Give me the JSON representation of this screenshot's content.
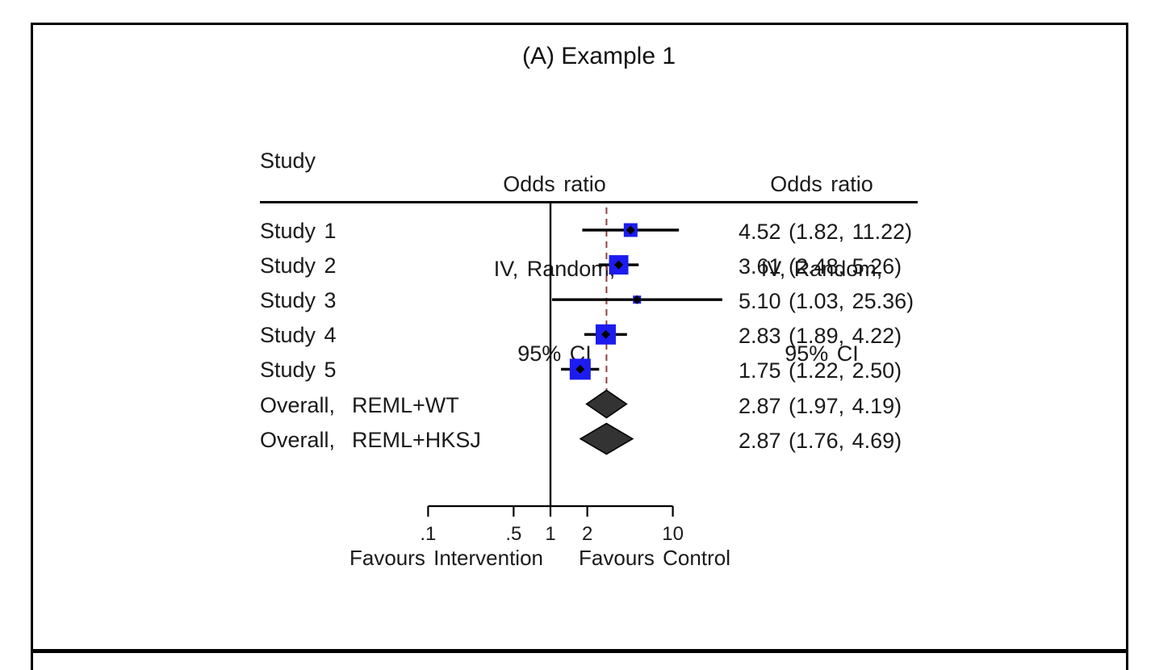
{
  "panel_title": "(A) Example 1",
  "chart_data": {
    "type": "forest",
    "title": "(A) Example 1",
    "x_scale": "log10",
    "study_column_header": "Study",
    "plot_column_header": [
      "Odds ratio",
      "IV, Random,",
      "95% CI"
    ],
    "value_column_header": [
      "Odds ratio",
      "IV, Random,",
      "95% CI"
    ],
    "reference_value": 1,
    "overall_dashed_value": 2.87,
    "rows": [
      {
        "type": "study",
        "label": "Study 1",
        "or": 4.52,
        "ci_low": 1.82,
        "ci_high": 11.22,
        "display": "4.52 (1.82, 11.22)",
        "marker_size": 17
      },
      {
        "type": "study",
        "label": "Study 2",
        "or": 3.61,
        "ci_low": 2.48,
        "ci_high": 5.26,
        "display": "3.61 (2.48, 5.26)",
        "marker_size": 24
      },
      {
        "type": "study",
        "label": "Study 3",
        "or": 5.1,
        "ci_low": 1.03,
        "ci_high": 25.36,
        "display": "5.10 (1.03, 25.36)",
        "marker_size": 10
      },
      {
        "type": "study",
        "label": "Study 4",
        "or": 2.83,
        "ci_low": 1.89,
        "ci_high": 4.22,
        "display": "2.83 (1.89, 4.22)",
        "marker_size": 25
      },
      {
        "type": "study",
        "label": "Study 5",
        "or": 1.75,
        "ci_low": 1.22,
        "ci_high": 2.5,
        "display": "1.75 (1.22, 2.50)",
        "marker_size": 26
      },
      {
        "type": "overall",
        "label": "Overall,  REML+WT",
        "or": 2.87,
        "ci_low": 1.97,
        "ci_high": 4.19,
        "display": "2.87 (1.97, 4.19)"
      },
      {
        "type": "overall",
        "label": "Overall,  REML+HKSJ",
        "or": 2.87,
        "ci_low": 1.76,
        "ci_high": 4.69,
        "display": "2.87 (1.76, 4.69)"
      }
    ],
    "axis": {
      "tick_labels": [
        ".1",
        ".5",
        "1",
        "2",
        "10"
      ],
      "tick_values": [
        0.1,
        0.5,
        1,
        2,
        10
      ],
      "left_label": "Favours Intervention",
      "right_label": "Favours Control"
    },
    "colors": {
      "marker": "#1c1cef",
      "point_estimate": "#000000",
      "ci_line": "#000000",
      "diamond_fill": "#333333",
      "diamond_stroke": "#000000",
      "dashed_line": "#8b4242",
      "axis": "#000000",
      "frame": "#000000"
    }
  }
}
